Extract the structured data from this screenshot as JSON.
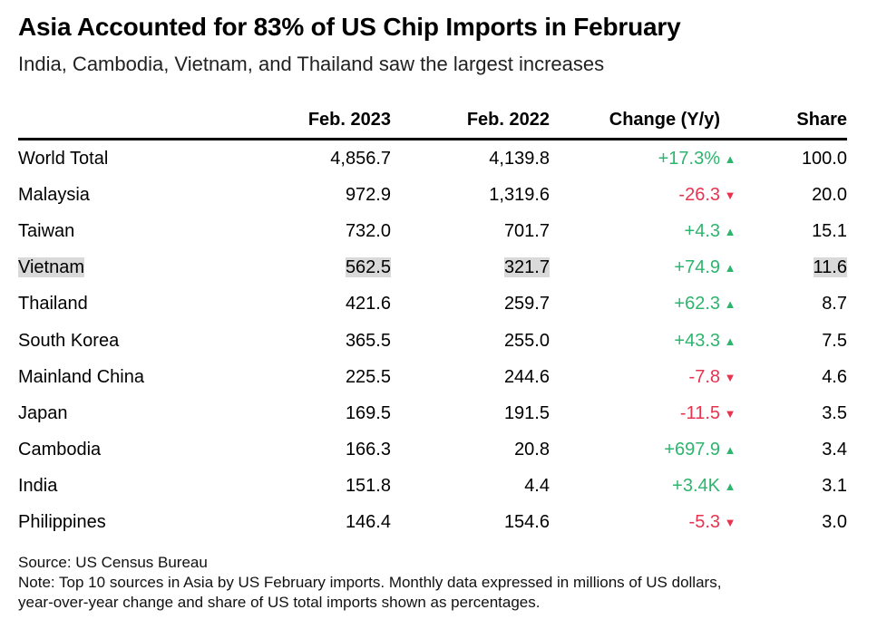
{
  "header": {
    "title": "Asia Accounted for 83% of US Chip Imports in February",
    "subtitle": "India, Cambodia, Vietnam, and Thailand saw the largest increases"
  },
  "footer": {
    "source": "Source: US Census Bureau",
    "note_line1": "Note: Top 10 sources in Asia by US February imports. Monthly data expressed in millions of US dollars,",
    "note_line2": "year-over-year change and share of US total imports shown as percentages."
  },
  "colors": {
    "positive": "#2db56e",
    "negative": "#e8334f",
    "highlight": "#d9d9d9"
  },
  "chart_data": {
    "type": "table",
    "title": "Asia Accounted for 83% of US Chip Imports in February",
    "subtitle": "India, Cambodia, Vietnam, and Thailand saw the largest increases",
    "columns": [
      "",
      "Feb. 2023",
      "Feb. 2022",
      "Change (Y/y)",
      "Share"
    ],
    "highlighted_row": "Vietnam",
    "rows": [
      {
        "country": "World Total",
        "feb2023": "4,856.7",
        "feb2022": "4,139.8",
        "change": "+17.3%",
        "direction": "up",
        "share": "100.0"
      },
      {
        "country": "Malaysia",
        "feb2023": "972.9",
        "feb2022": "1,319.6",
        "change": "-26.3",
        "direction": "down",
        "share": "20.0"
      },
      {
        "country": "Taiwan",
        "feb2023": "732.0",
        "feb2022": "701.7",
        "change": "+4.3",
        "direction": "up",
        "share": "15.1"
      },
      {
        "country": "Vietnam",
        "feb2023": "562.5",
        "feb2022": "321.7",
        "change": "+74.9",
        "direction": "up",
        "share": "11.6"
      },
      {
        "country": "Thailand",
        "feb2023": "421.6",
        "feb2022": "259.7",
        "change": "+62.3",
        "direction": "up",
        "share": "8.7"
      },
      {
        "country": "South Korea",
        "feb2023": "365.5",
        "feb2022": "255.0",
        "change": "+43.3",
        "direction": "up",
        "share": "7.5"
      },
      {
        "country": "Mainland China",
        "feb2023": "225.5",
        "feb2022": "244.6",
        "change": "-7.8",
        "direction": "down",
        "share": "4.6"
      },
      {
        "country": "Japan",
        "feb2023": "169.5",
        "feb2022": "191.5",
        "change": "-11.5",
        "direction": "down",
        "share": "3.5"
      },
      {
        "country": "Cambodia",
        "feb2023": "166.3",
        "feb2022": "20.8",
        "change": "+697.9",
        "direction": "up",
        "share": "3.4"
      },
      {
        "country": "India",
        "feb2023": "151.8",
        "feb2022": "4.4",
        "change": "+3.4K",
        "direction": "up",
        "share": "3.1"
      },
      {
        "country": "Philippines",
        "feb2023": "146.4",
        "feb2022": "154.6",
        "change": "-5.3",
        "direction": "down",
        "share": "3.0"
      }
    ]
  }
}
